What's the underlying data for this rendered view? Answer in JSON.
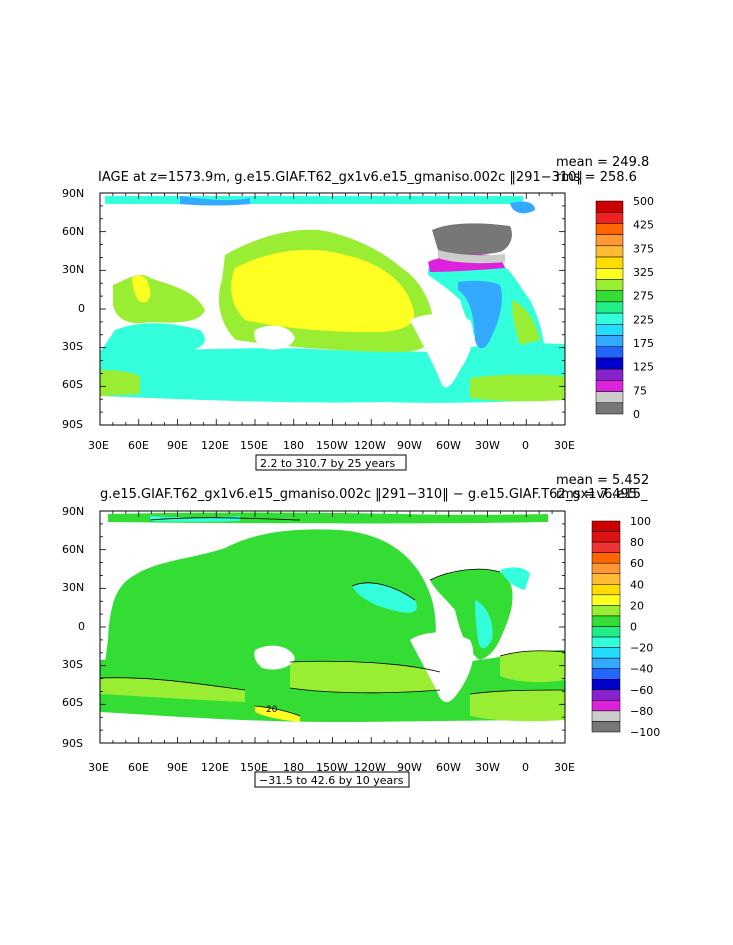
{
  "panels": [
    {
      "title": "IAGE at z=1573.9m, g.e15.GIAF.T62_gx1v6.e15_gmaniso.002c ‖291−310‖",
      "stat_mean": "mean = 249.8",
      "stat_rms": "rms = 258.6",
      "contour_info": "2.2 to 310.7 by 25 years",
      "colorbar": {
        "labels": [
          "500",
          "425",
          "375",
          "325",
          "275",
          "225",
          "175",
          "125",
          "75",
          "0"
        ],
        "colors": [
          "#cc0000",
          "#ee2222",
          "#ff6600",
          "#ff9933",
          "#ffbb33",
          "#ffdd00",
          "#ffff22",
          "#99ee33",
          "#33dd33",
          "#22ee88",
          "#33ffdd",
          "#22ddff",
          "#33aaff",
          "#2266ff",
          "#0000cc",
          "#8822cc",
          "#dd22dd",
          "#cccccc",
          "#777777"
        ]
      }
    },
    {
      "title": "g.e15.GIAF.T62_gx1v6.e15_gmaniso.002c ‖291−310‖ − g.e15.GIAF.T62_gx1v6.e15_",
      "stat_mean": "mean = 5.452",
      "stat_rms": "rms = 7.495",
      "contour_info": "−31.5 to 42.6 by 10 years",
      "colorbar": {
        "labels": [
          "100",
          "80",
          "60",
          "40",
          "20",
          "0",
          "−20",
          "−40",
          "−60",
          "−80",
          "−100"
        ],
        "colors": [
          "#cc0000",
          "#dd1111",
          "#ee3333",
          "#ff6600",
          "#ff9933",
          "#ffbb33",
          "#ffdd00",
          "#ffff22",
          "#99ee33",
          "#33dd33",
          "#22ee88",
          "#33ffdd",
          "#22ddff",
          "#33aaff",
          "#2266ff",
          "#0000cc",
          "#8822cc",
          "#dd22dd",
          "#cccccc",
          "#777777"
        ]
      },
      "contour_label": "20"
    }
  ],
  "axes": {
    "lat_labels": [
      "90N",
      "60N",
      "30N",
      "0",
      "30S",
      "60S",
      "90S"
    ],
    "lon_labels": [
      "30E",
      "60E",
      "90E",
      "120E",
      "150E",
      "180",
      "150W",
      "120W",
      "90W",
      "60W",
      "30W",
      "0",
      "30E"
    ]
  }
}
